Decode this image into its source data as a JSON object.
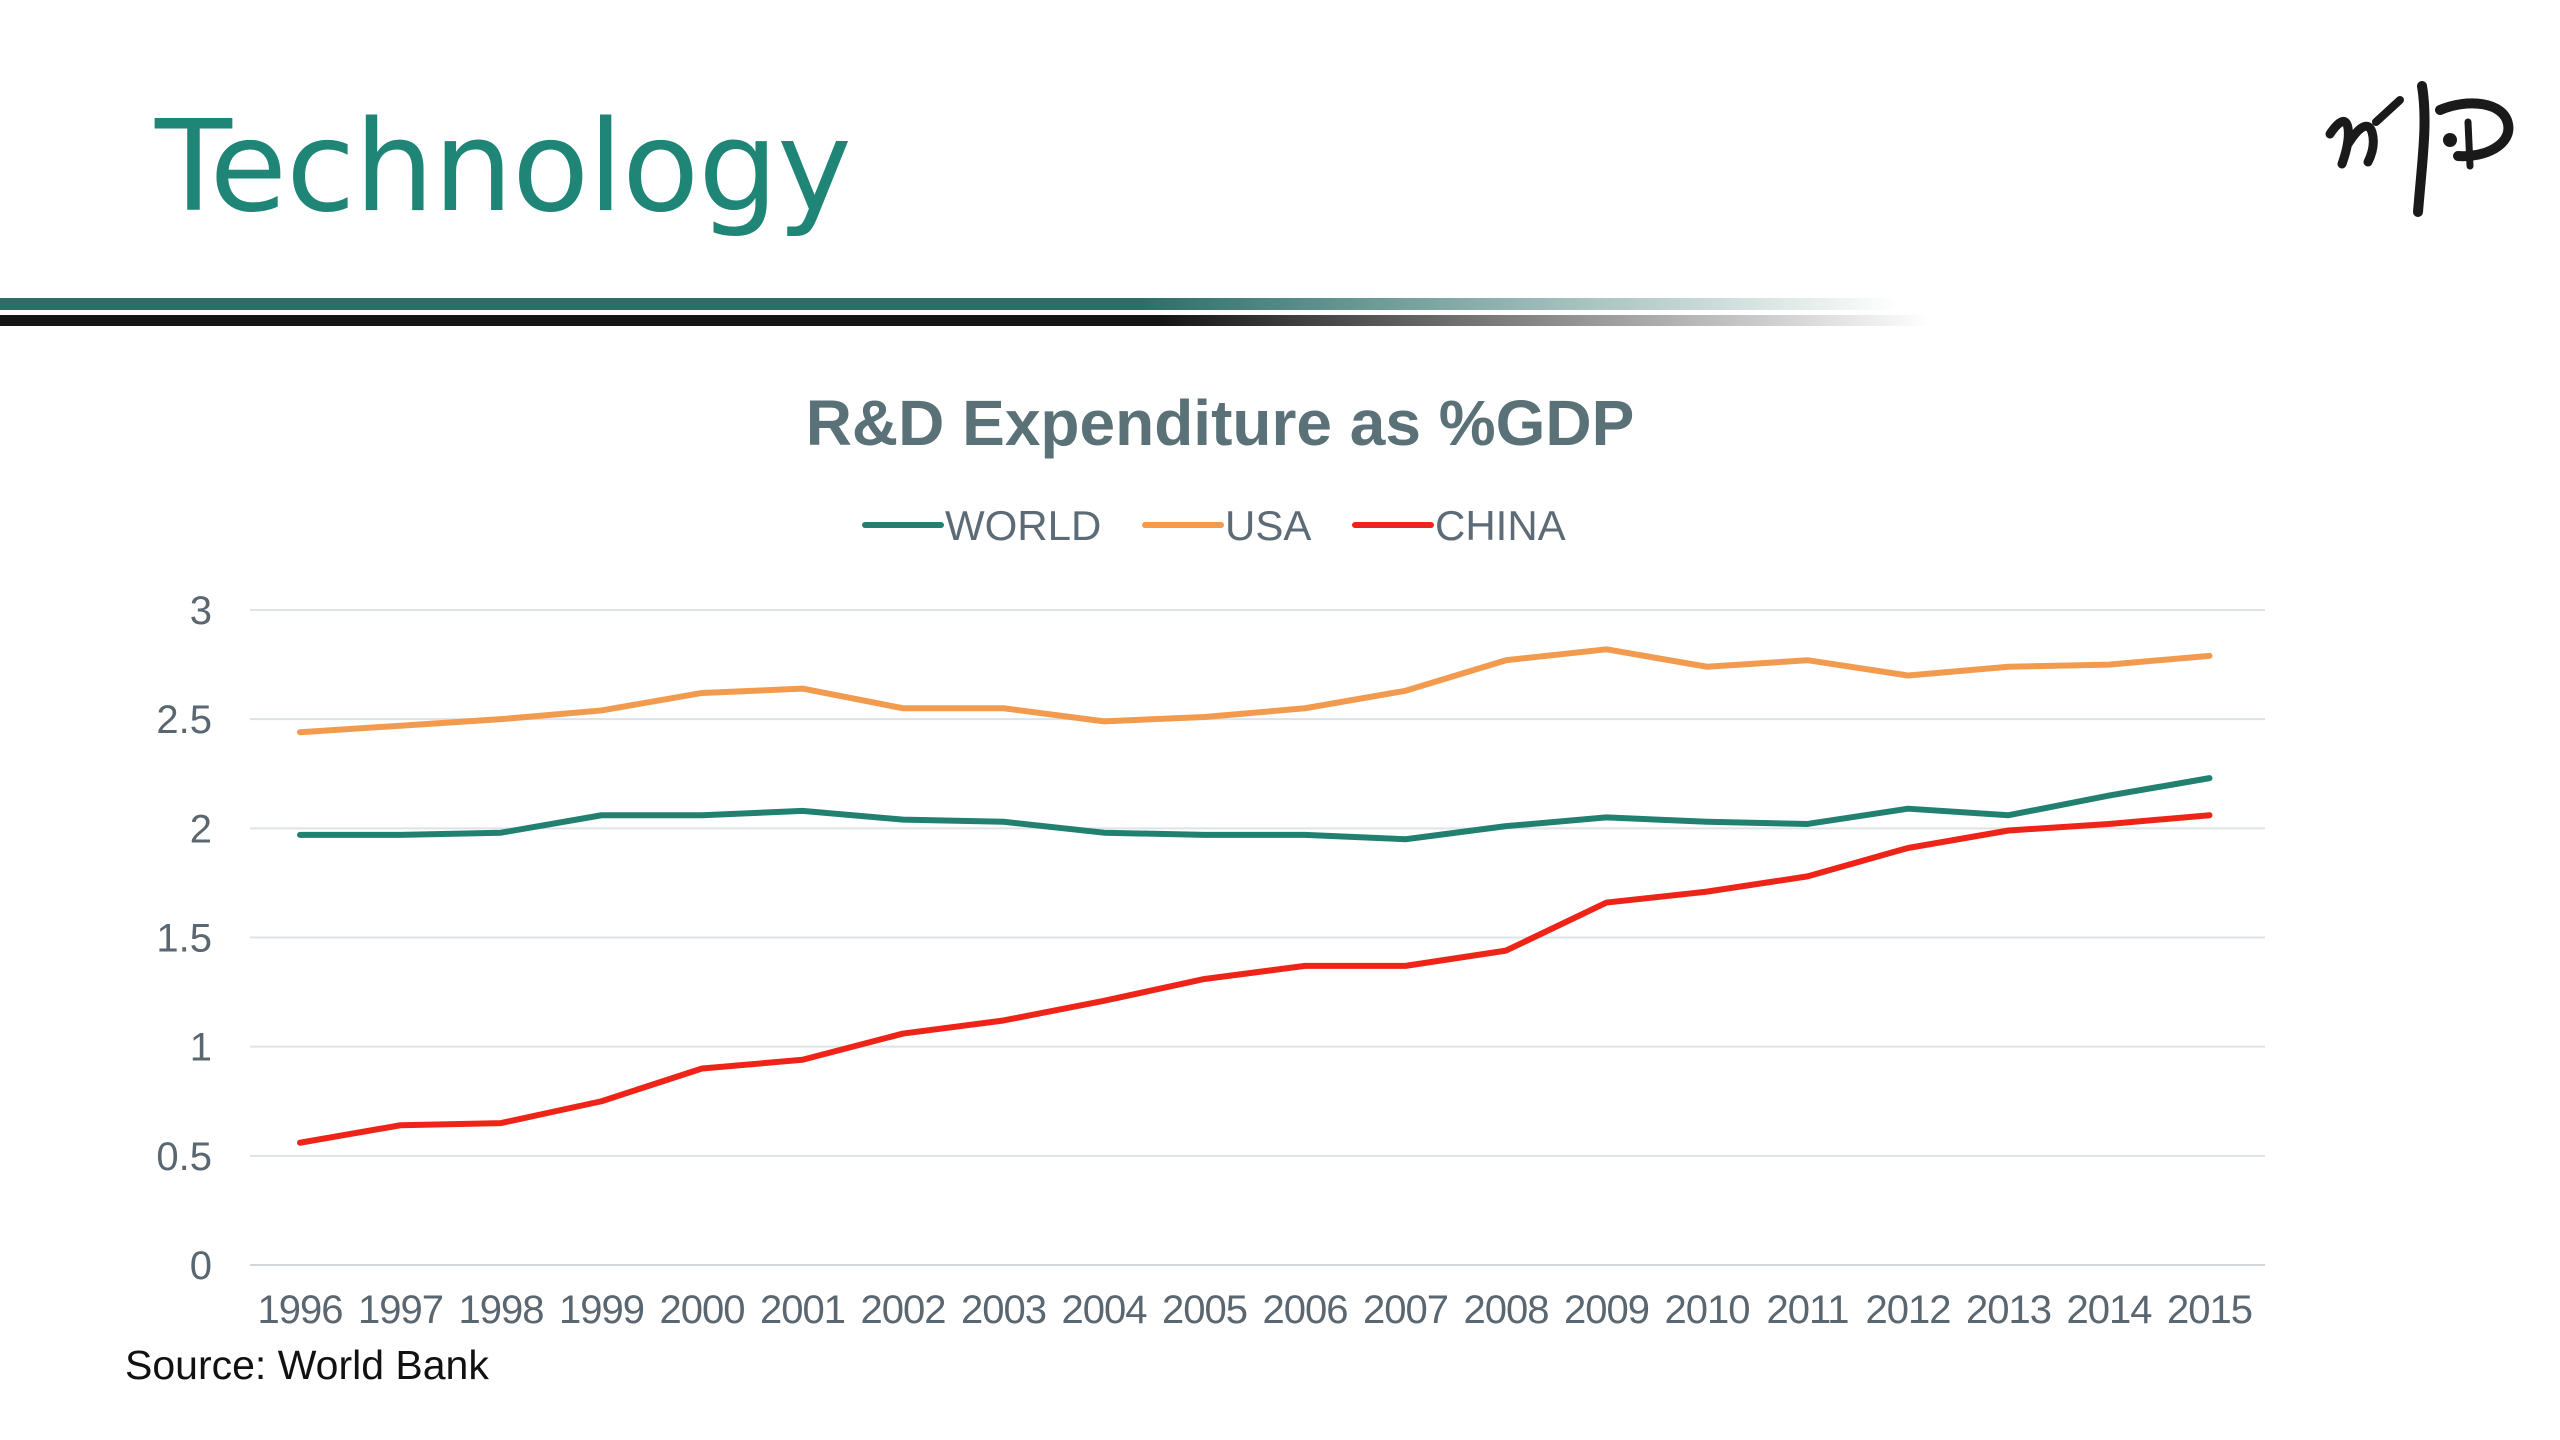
{
  "slide": {
    "title": "Technology",
    "source": "Source: World Bank",
    "logo": "wp-calligraphy-logo",
    "colors": {
      "title": "#1f8576",
      "rule_teal": "#2c6e67",
      "rule_black": "#141414"
    }
  },
  "chart_data": {
    "type": "line",
    "title": "R&D Expenditure as %GDP",
    "xlabel": "",
    "ylabel": "",
    "ylim": [
      0,
      3
    ],
    "yticks": [
      "0",
      "0.5",
      "1",
      "1.5",
      "2",
      "2.5",
      "3"
    ],
    "grid": true,
    "legend_position": "top-center",
    "categories": [
      "1996",
      "1997",
      "1998",
      "1999",
      "2000",
      "2001",
      "2002",
      "2003",
      "2004",
      "2005",
      "2006",
      "2007",
      "2008",
      "2009",
      "2010",
      "2011",
      "2012",
      "2013",
      "2014",
      "2015"
    ],
    "series": [
      {
        "name": "WORLD",
        "color": "#21806f",
        "values": [
          1.97,
          1.97,
          1.98,
          2.06,
          2.06,
          2.08,
          2.04,
          2.03,
          1.98,
          1.97,
          1.97,
          1.95,
          2.01,
          2.05,
          2.03,
          2.02,
          2.09,
          2.06,
          2.15,
          2.23
        ]
      },
      {
        "name": "USA",
        "color": "#f29b4f",
        "values": [
          2.44,
          2.47,
          2.5,
          2.54,
          2.62,
          2.64,
          2.55,
          2.55,
          2.49,
          2.51,
          2.55,
          2.63,
          2.77,
          2.82,
          2.74,
          2.77,
          2.7,
          2.74,
          2.75,
          2.79
        ]
      },
      {
        "name": "CHINA",
        "color": "#ef2418",
        "values": [
          0.56,
          0.64,
          0.65,
          0.75,
          0.9,
          0.94,
          1.06,
          1.12,
          1.21,
          1.31,
          1.37,
          1.37,
          1.44,
          1.66,
          1.71,
          1.78,
          1.91,
          1.99,
          2.02,
          2.06
        ]
      }
    ]
  }
}
